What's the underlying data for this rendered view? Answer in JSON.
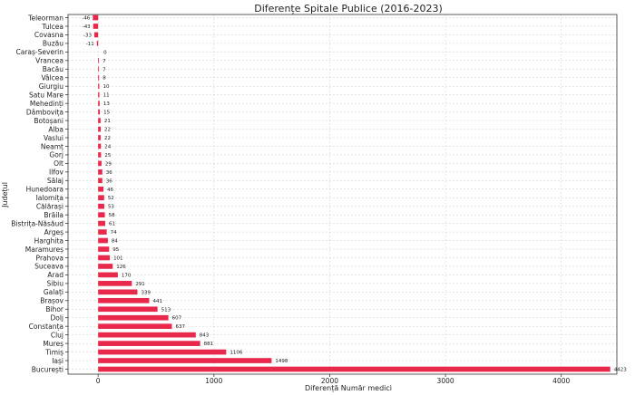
{
  "chart_data": {
    "type": "bar",
    "orientation": "horizontal",
    "title": "Diferențe Spitale Publice (2016-2023)",
    "xlabel": "Diferență Număr medici",
    "ylabel": "Județul",
    "xlim": [
      -260,
      4480
    ],
    "xticks": [
      0,
      1000,
      2000,
      3000,
      4000
    ],
    "grid": true,
    "bar_color": "#e8294c",
    "categories": [
      "Teleorman",
      "Tulcea",
      "Covasna",
      "Buzău",
      "Caraș-Severin",
      "Vrancea",
      "Bacău",
      "Vâlcea",
      "Giurgiu",
      "Satu Mare",
      "Mehedinți",
      "Dâmbovița",
      "Botoșani",
      "Alba",
      "Vaslui",
      "Neamț",
      "Gorj",
      "Olt",
      "Ilfov",
      "Sălaj",
      "Hunedoara",
      "Ialomița",
      "Călărași",
      "Brăila",
      "Bistrița-Năsăud",
      "Argeș",
      "Harghita",
      "Maramureș",
      "Prahova",
      "Suceava",
      "Arad",
      "Sibiu",
      "Galați",
      "Brașov",
      "Bihor",
      "Dolj",
      "Constanța",
      "Cluj",
      "Mureș",
      "Timiș",
      "Iași",
      "București"
    ],
    "values": [
      -46,
      -43,
      -33,
      -11,
      0,
      7,
      7,
      8,
      10,
      11,
      13,
      15,
      21,
      22,
      22,
      24,
      25,
      29,
      36,
      36,
      46,
      52,
      53,
      58,
      61,
      74,
      84,
      95,
      101,
      126,
      170,
      291,
      339,
      441,
      513,
      607,
      637,
      843,
      881,
      1106,
      1498,
      4423
    ]
  }
}
